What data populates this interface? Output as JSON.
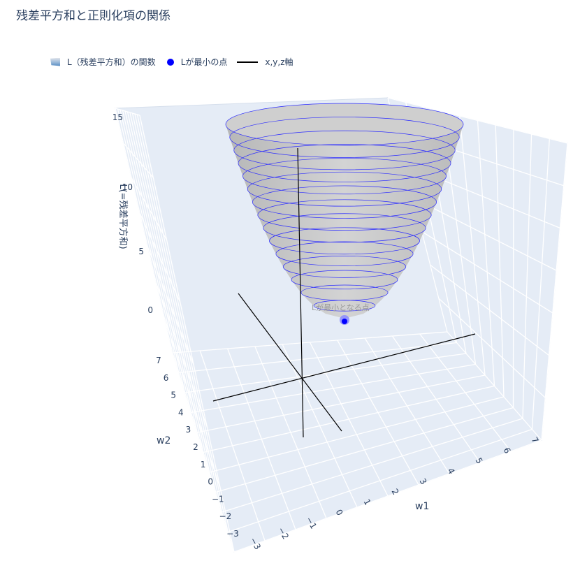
{
  "title": "残差平方和と正則化項の関係",
  "legend": {
    "surface": "L（残差平方和）の関数",
    "min_point": "Lが最小の点",
    "axes": "x,y,z軸"
  },
  "colors": {
    "contour": "#2a2aff",
    "surface": "#c8c8c8",
    "point": "#0000ff",
    "axes": "#000000",
    "scene_bg": "#e5ecf6",
    "grid": "#ffffff",
    "text": "#2a3f5f"
  },
  "chart_data": {
    "type": "surface",
    "title": "残差平方和と正則化項の関係",
    "xlabel": "w1",
    "ylabel": "w2",
    "zlabel": "L(=残差平方和)",
    "x_ticks": [
      -3,
      -2,
      -1,
      0,
      1,
      2,
      3,
      4,
      5,
      6,
      7
    ],
    "y_ticks": [
      -3,
      -2,
      -1,
      0,
      1,
      2,
      3,
      4,
      5,
      6,
      7
    ],
    "z_ticks": [
      0,
      5,
      10,
      15
    ],
    "z_range": [
      -3,
      15
    ],
    "contour_levels": [
      1,
      2,
      3,
      4,
      5,
      6,
      7,
      8,
      9,
      10,
      11,
      12,
      13,
      14,
      15
    ],
    "min_point": {
      "w1": 2,
      "w2": 3,
      "L": 0,
      "label": "Lが最小となる点"
    },
    "axis_lines": [
      "x",
      "y",
      "z"
    ]
  }
}
